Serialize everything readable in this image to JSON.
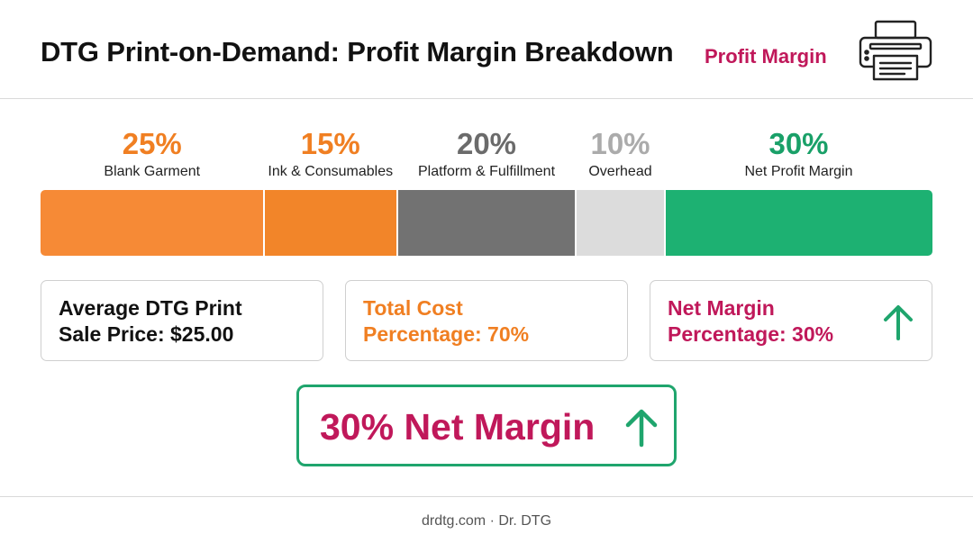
{
  "header": {
    "title": "DTG Print-on-Demand: Profit Margin Breakdown",
    "subtitle": "Profit Margin",
    "icon": "printer-icon"
  },
  "chart_data": {
    "type": "bar",
    "orientation": "horizontal-stacked",
    "unit": "%",
    "segments": [
      {
        "label": "Blank Garment",
        "value": 25,
        "value_label": "25%",
        "color": "#F68A36",
        "label_color": "#F07F22"
      },
      {
        "label": "Ink & Consumables",
        "value": 15,
        "value_label": "15%",
        "color": "#F28529",
        "label_color": "#F07F22"
      },
      {
        "label": "Platform & Fulfillment",
        "value": 20,
        "value_label": "20%",
        "color": "#727272",
        "label_color": "#6B6B6B"
      },
      {
        "label": "Overhead",
        "value": 10,
        "value_label": "10%",
        "color": "#DCDCDC",
        "label_color": "#ABABAB"
      },
      {
        "label": "Net Profit Margin",
        "value": 30,
        "value_label": "30%",
        "color": "#1DB172",
        "label_color": "#19A068"
      }
    ]
  },
  "cards": [
    {
      "text": "Average DTG Print Sale Price: $25.00",
      "color": "#111111",
      "icon": null
    },
    {
      "text": "Total Cost Percentage: 70%",
      "color": "#F07F22",
      "icon": null
    },
    {
      "text": "Net Margin Percentage: 30%",
      "color": "#C0185A",
      "icon": "arrow-up-icon"
    }
  ],
  "highlight": {
    "text": "30% Net Margin",
    "icon": "arrow-up-icon",
    "text_color": "#C0185A",
    "accent_color": "#1FA56D"
  },
  "footer": {
    "text": "drdtg.com · Dr. DTG"
  }
}
